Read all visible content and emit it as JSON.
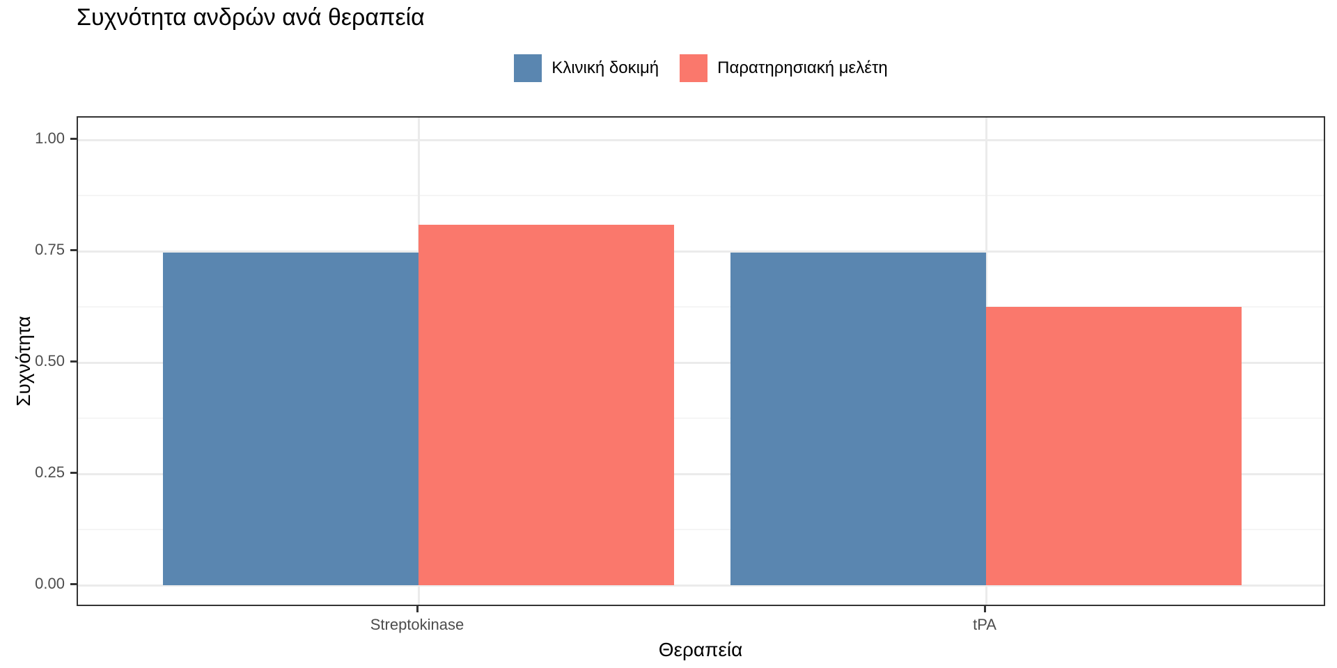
{
  "figure": {
    "background_color": "#ffffff",
    "panel_border_color": "#333333",
    "gridline_major_color": "#ebebeb",
    "gridline_minor_color": "#f5f5f5",
    "tick_color": "#333333",
    "tick_label_color": "#4d4d4d",
    "text_color": "#000000"
  },
  "chart_data": {
    "type": "bar",
    "title": "Συχνότητα ανδρών ανά θεραπεία",
    "xlabel": "Θεραπεία",
    "ylabel": "Συχνότητα",
    "categories": [
      "Streptokinase",
      "tPA"
    ],
    "series": [
      {
        "name": "Κλινική δοκιμή",
        "color": "#5A86B0",
        "values": [
          0.747,
          0.747
        ]
      },
      {
        "name": "Παρατηρησιακή μελέτη",
        "color": "#FA786C",
        "values": [
          0.81,
          0.625
        ]
      }
    ],
    "ylim": [
      -0.05,
      1.05
    ],
    "yticks": [
      {
        "v": 0.0,
        "label": "0.00"
      },
      {
        "v": 0.25,
        "label": "0.25"
      },
      {
        "v": 0.5,
        "label": "0.50"
      },
      {
        "v": 0.75,
        "label": "0.75"
      },
      {
        "v": 1.0,
        "label": "1.00"
      }
    ],
    "yticks_minor": [
      0.125,
      0.375,
      0.625,
      0.875
    ],
    "grid": true,
    "legend_position": "top",
    "bar_mode": "dodge"
  }
}
